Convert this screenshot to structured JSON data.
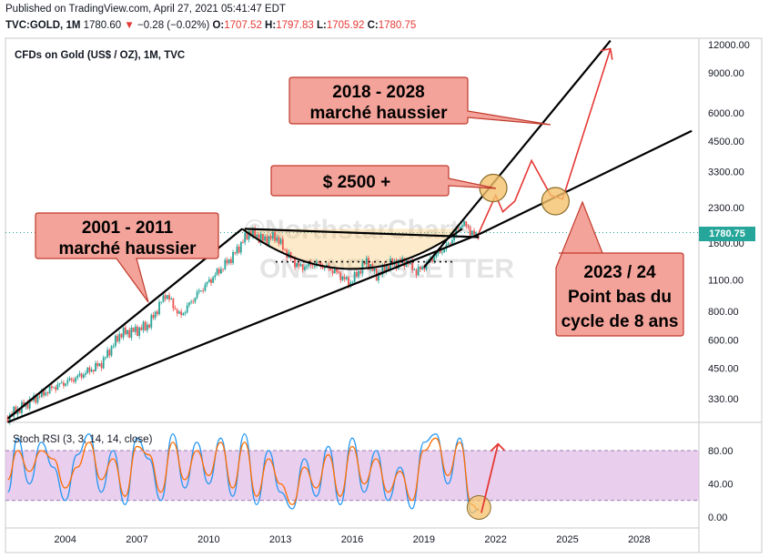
{
  "header": {
    "published": "Published on TradingView.com, April 27, 2021 05:41:47 EDT",
    "symbol": "TVC:GOLD, 1M",
    "last": "1780.60",
    "change": "−0.28 (−0.02%)",
    "o_label": "O:",
    "o_value": "1707.52",
    "h_label": "H:",
    "h_value": "1797.83",
    "l_label": "L:",
    "l_value": "1705.92",
    "c_label": "C:",
    "c_value": "1780.75"
  },
  "chart_title": "CFDs on Gold (US$ / OZ), 1M, TVC",
  "watermark_line1": "©NorthstarCharts",
  "watermark_line2": "ONE NEWSLETTER",
  "price_badge": "1780.75",
  "colors": {
    "up": "#26a69a",
    "down": "#ef5350",
    "callout_fill": "#f4a39a",
    "callout_stroke": "#c0392b",
    "arrow": "#e53935",
    "stoch_k": "#2196f3",
    "stoch_d": "#ff6d00",
    "stoch_band": "#e1bee7",
    "highlight": "#f5c26b"
  },
  "callouts": {
    "c2001": [
      "2001 - 2011",
      "marché haussier"
    ],
    "c2018": [
      "2018 - 2028",
      "marché haussier"
    ],
    "c2500": [
      "$ 2500 +"
    ],
    "c2023": [
      "2023 / 24",
      "Point bas du",
      "cycle de 8 ans"
    ]
  },
  "chart_data": [
    {
      "type": "candlestick",
      "title": "CFDs on Gold (US$ / OZ), 1M, TVC",
      "scale": "log",
      "y_ticks": [
        330,
        450,
        600,
        800,
        1100,
        1600,
        2300,
        3300,
        4500,
        6000,
        9000,
        12000
      ],
      "y_tick_labels": [
        "330.00",
        "450.00",
        "600.00",
        "800.00",
        "1100.00",
        "1600.00",
        "2300.00",
        "3300.00",
        "4500.00",
        "6000.00",
        "9000.00",
        "12000.00"
      ],
      "x_ticks": [
        2004,
        2007,
        2010,
        2013,
        2016,
        2019,
        2022,
        2025,
        2028
      ],
      "x_range": [
        2001.5,
        2030.5
      ],
      "last_price": 1780.75,
      "price_path": [
        [
          2001.6,
          275
        ],
        [
          2002.5,
          320
        ],
        [
          2003.5,
          370
        ],
        [
          2004.5,
          410
        ],
        [
          2005.5,
          470
        ],
        [
          2006.3,
          640
        ],
        [
          2007.0,
          660
        ],
        [
          2007.5,
          700
        ],
        [
          2008.2,
          960
        ],
        [
          2008.8,
          760
        ],
        [
          2009.5,
          950
        ],
        [
          2010.5,
          1230
        ],
        [
          2011.0,
          1400
        ],
        [
          2011.7,
          1800
        ],
        [
          2012.3,
          1650
        ],
        [
          2012.8,
          1720
        ],
        [
          2013.3,
          1420
        ],
        [
          2013.8,
          1250
        ],
        [
          2014.5,
          1300
        ],
        [
          2015.3,
          1200
        ],
        [
          2015.9,
          1060
        ],
        [
          2016.6,
          1340
        ],
        [
          2017.0,
          1150
        ],
        [
          2017.6,
          1300
        ],
        [
          2018.3,
          1330
        ],
        [
          2018.7,
          1190
        ],
        [
          2019.5,
          1420
        ],
        [
          2020.0,
          1560
        ],
        [
          2020.6,
          1970
        ],
        [
          2021.2,
          1700
        ],
        [
          2021.3,
          1780
        ]
      ],
      "trendlines": [
        {
          "from": [
            2001.6,
            270
          ],
          "to": [
            2011.4,
            1850
          ]
        },
        {
          "from": [
            2001.6,
            260
          ],
          "to": [
            2021.3,
            1750
          ]
        },
        {
          "from": [
            2019.0,
            1250
          ],
          "to": [
            2026.8,
            12500
          ]
        },
        {
          "from": [
            2011.5,
            1850
          ],
          "to": [
            2021.3,
            1700
          ]
        },
        {
          "from": [
            2021.3,
            1750
          ],
          "to": [
            2030.2,
            5000
          ]
        }
      ],
      "support_dotted_level": 1325,
      "projection_path": [
        [
          2021.3,
          1780
        ],
        [
          2022.0,
          2600
        ],
        [
          2022.3,
          2200
        ],
        [
          2022.8,
          2450
        ],
        [
          2023.5,
          3700
        ],
        [
          2024.3,
          2600
        ],
        [
          2024.8,
          2500
        ],
        [
          2026.8,
          11500
        ]
      ],
      "highlight_circles": [
        {
          "x": 2021.9,
          "y": 2800
        },
        {
          "x": 2024.5,
          "y": 2450
        }
      ]
    },
    {
      "type": "line",
      "title": "Stoch RSI (3, 3, 14, 14, close)",
      "y_ticks": [
        0,
        40,
        80
      ],
      "y_tick_labels": [
        "0.00",
        "40.00",
        "80.00"
      ],
      "band": [
        20,
        80
      ],
      "series": [
        {
          "name": "K",
          "x": [
            2001.6,
            2002.0,
            2002.5,
            2003.0,
            2003.5,
            2004.0,
            2004.5,
            2005.0,
            2005.5,
            2006.0,
            2006.5,
            2007.0,
            2007.5,
            2008.0,
            2008.5,
            2009.0,
            2009.5,
            2010.0,
            2010.5,
            2011.0,
            2011.5,
            2012.0,
            2012.5,
            2013.0,
            2013.5,
            2014.0,
            2014.5,
            2015.0,
            2015.5,
            2016.0,
            2016.5,
            2017.0,
            2017.5,
            2018.0,
            2018.5,
            2019.0,
            2019.5,
            2020.0,
            2020.5,
            2021.0,
            2021.3
          ],
          "y": [
            30,
            95,
            40,
            90,
            60,
            20,
            75,
            100,
            30,
            80,
            15,
            95,
            70,
            20,
            100,
            35,
            90,
            40,
            95,
            25,
            100,
            15,
            80,
            30,
            10,
            70,
            25,
            85,
            15,
            95,
            30,
            80,
            20,
            60,
            10,
            90,
            100,
            40,
            95,
            5,
            10
          ]
        },
        {
          "name": "D",
          "x": [
            2001.6,
            2002.0,
            2002.5,
            2003.0,
            2003.5,
            2004.0,
            2004.5,
            2005.0,
            2005.5,
            2006.0,
            2006.5,
            2007.0,
            2007.5,
            2008.0,
            2008.5,
            2009.0,
            2009.5,
            2010.0,
            2010.5,
            2011.0,
            2011.5,
            2012.0,
            2012.5,
            2013.0,
            2013.5,
            2014.0,
            2014.5,
            2015.0,
            2015.5,
            2016.0,
            2016.5,
            2017.0,
            2017.5,
            2018.0,
            2018.5,
            2019.0,
            2019.5,
            2020.0,
            2020.5,
            2021.0,
            2021.3
          ],
          "y": [
            45,
            80,
            55,
            80,
            70,
            35,
            60,
            90,
            45,
            70,
            25,
            85,
            75,
            30,
            90,
            45,
            80,
            50,
            90,
            35,
            90,
            25,
            70,
            40,
            15,
            60,
            35,
            75,
            25,
            85,
            40,
            70,
            30,
            55,
            20,
            80,
            95,
            50,
            90,
            15,
            8
          ]
        }
      ],
      "projection": {
        "from": [
          2021.4,
          5
        ],
        "to": [
          2022.1,
          88
        ]
      },
      "highlight_circle": {
        "x": 2021.3,
        "y": 5
      }
    }
  ]
}
